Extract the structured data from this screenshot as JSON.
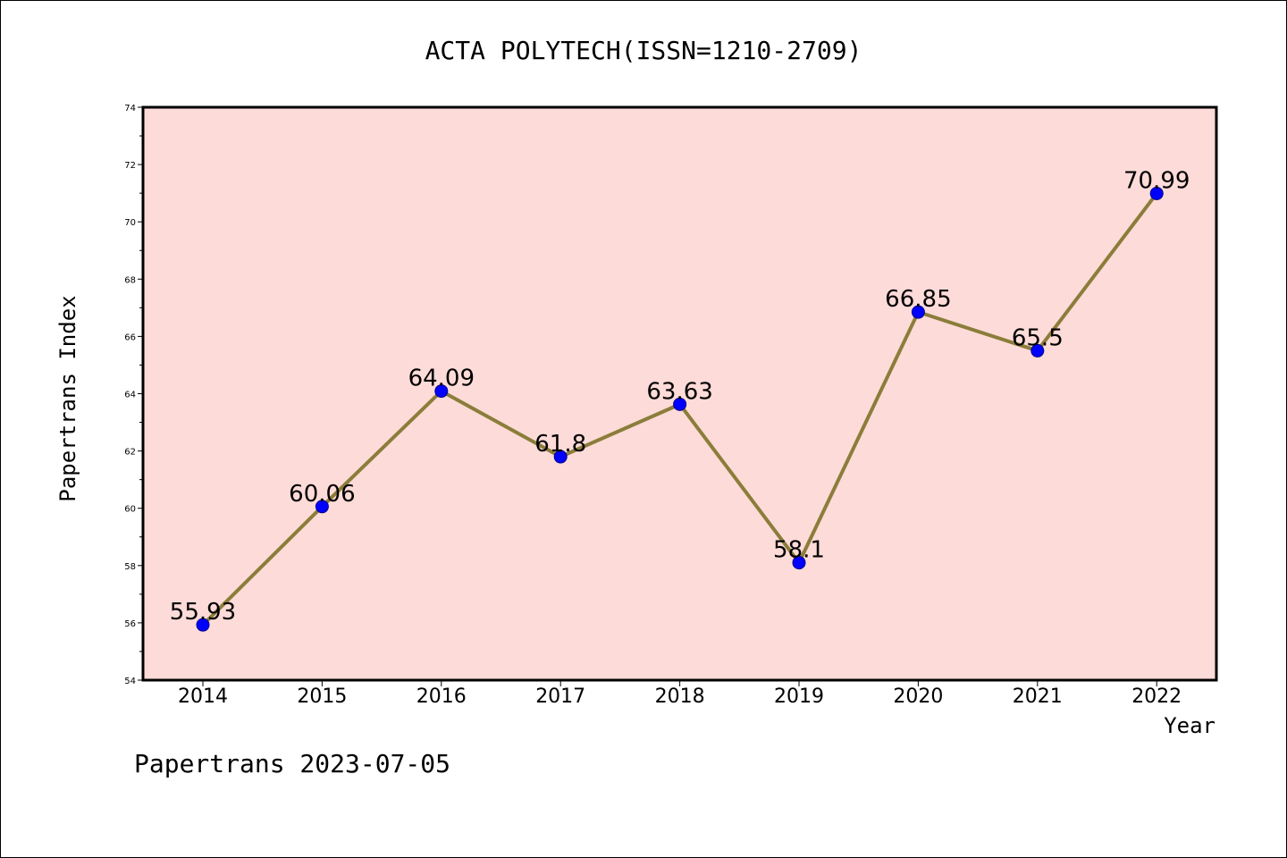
{
  "chart_data": {
    "type": "line",
    "title": "ACTA POLYTECH(ISSN=1210-2709)",
    "xlabel": "Year",
    "ylabel": "Papertrans Index",
    "x": [
      "2014",
      "2015",
      "2016",
      "2017",
      "2018",
      "2019",
      "2020",
      "2021",
      "2022"
    ],
    "y": [
      55.93,
      60.06,
      64.09,
      61.8,
      63.63,
      58.1,
      66.85,
      65.5,
      70.99
    ],
    "data_labels": [
      "55.93",
      "60.06",
      "64.09",
      "61.8",
      "63.63",
      "58.1",
      "66.85",
      "65.5",
      "70.99"
    ],
    "ylim": [
      54,
      74
    ],
    "yticks": [
      54,
      56,
      58,
      60,
      62,
      64,
      66,
      68,
      70,
      72,
      74
    ],
    "colors": {
      "plot_background": "#fddbd8",
      "line": "#8b7d3a",
      "marker": "#0000ff",
      "axes": "#000000"
    },
    "grid": false,
    "legend": "none"
  },
  "footer": "Papertrans 2023-07-05"
}
